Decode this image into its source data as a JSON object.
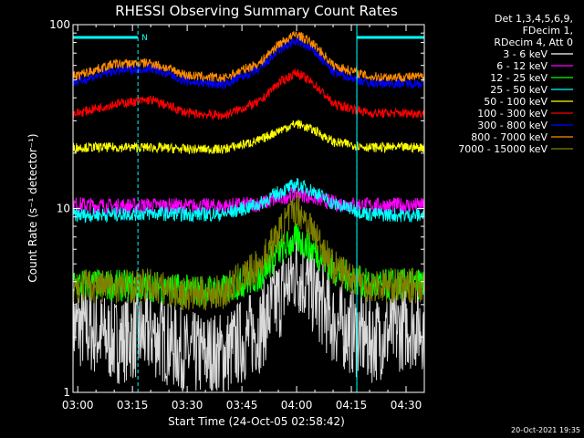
{
  "chart_data": {
    "type": "line",
    "title": "RHESSI Observing Summary Count Rates",
    "xlabel": "Start Time (24-Oct-05 02:58:42)",
    "ylabel": "Count Rate (s⁻¹ detector⁻¹)",
    "y_scale": "log",
    "ylim": [
      1,
      100
    ],
    "xlim_minutes": [
      -1.3,
      95.0
    ],
    "x_ticks": [
      {
        "label": "03:00",
        "minute": 0
      },
      {
        "label": "03:15",
        "minute": 15
      },
      {
        "label": "03:30",
        "minute": 30
      },
      {
        "label": "03:45",
        "minute": 45
      },
      {
        "label": "04:00",
        "minute": 60
      },
      {
        "label": "04:15",
        "minute": 75
      },
      {
        "label": "04:30",
        "minute": 90
      }
    ],
    "y_ticks": [
      {
        "label": "1",
        "value": 1
      },
      {
        "label": "10",
        "value": 10
      },
      {
        "label": "100",
        "value": 100
      }
    ],
    "legend_header": [
      "Det 1,3,4,5,6,9,",
      "FDecim 1,",
      "RDecim 4, Att 0"
    ],
    "legend_position": "right",
    "flags": {
      "label": "N",
      "color": "#00ffff",
      "night_segments_minutes": [
        [
          -1.3,
          16.5
        ],
        [
          76.5,
          95.0
        ]
      ],
      "dashed_markers_minutes": [
        16.5,
        76.5
      ],
      "solid_markers_minutes": [
        -1.3,
        76.5,
        95.0
      ]
    },
    "series": [
      {
        "name": "3 - 6 keV",
        "color": "#000000",
        "x_minutes": [
          0,
          10,
          20,
          30,
          40,
          50,
          55,
          60,
          65,
          70,
          80,
          90
        ],
        "values": [
          2.3,
          1.9,
          2.1,
          1.6,
          1.6,
          2.2,
          3.2,
          4.6,
          3.4,
          2.4,
          1.9,
          2.3
        ]
      },
      {
        "name": "6 - 12 keV",
        "color": "#ff00ff",
        "x_minutes": [
          0,
          10,
          20,
          30,
          40,
          50,
          55,
          60,
          65,
          70,
          80,
          90
        ],
        "values": [
          10.5,
          10.3,
          10.4,
          10.3,
          10.3,
          10.6,
          11.3,
          12.2,
          11.4,
          10.7,
          10.4,
          10.4
        ]
      },
      {
        "name": "12 - 25 keV",
        "color": "#00ff00",
        "x_minutes": [
          0,
          10,
          20,
          30,
          40,
          50,
          55,
          60,
          65,
          70,
          80,
          90
        ],
        "values": [
          3.9,
          3.8,
          3.8,
          3.6,
          3.6,
          4.3,
          5.8,
          6.8,
          5.9,
          4.6,
          3.8,
          3.9
        ]
      },
      {
        "name": "25 - 50 keV",
        "color": "#00ffff",
        "x_minutes": [
          0,
          10,
          20,
          30,
          40,
          50,
          55,
          60,
          65,
          70,
          80,
          90
        ],
        "values": [
          9.2,
          9.3,
          9.4,
          9.3,
          9.3,
          10.6,
          12.2,
          13.5,
          12.3,
          10.6,
          9.3,
          9.2
        ]
      },
      {
        "name": "50 - 100 keV",
        "color": "#ffff00",
        "x_minutes": [
          0,
          10,
          20,
          30,
          40,
          50,
          55,
          60,
          65,
          70,
          80,
          90
        ],
        "values": [
          21.5,
          21.5,
          21.5,
          21.0,
          21.0,
          23.5,
          26.5,
          29.0,
          26.5,
          23.0,
          21.5,
          21.5
        ]
      },
      {
        "name": "100 - 300 keV",
        "color": "#ff0000",
        "x_minutes": [
          0,
          10,
          20,
          30,
          40,
          50,
          55,
          60,
          65,
          70,
          80,
          90
        ],
        "values": [
          33,
          37,
          39,
          33,
          32,
          38,
          48,
          55,
          47,
          37,
          33,
          33
        ]
      },
      {
        "name": "300 - 800 keV",
        "color": "#0000ff",
        "x_minutes": [
          0,
          10,
          20,
          30,
          40,
          50,
          55,
          60,
          65,
          70,
          80,
          90
        ],
        "values": [
          49,
          56,
          58,
          49,
          47,
          57,
          72,
          82,
          71,
          55,
          48,
          48
        ]
      },
      {
        "name": "800 - 7000 keV",
        "color": "#ff8c00",
        "x_minutes": [
          0,
          10,
          20,
          30,
          40,
          50,
          55,
          60,
          65,
          70,
          80,
          90
        ],
        "values": [
          53,
          61,
          62,
          53,
          51,
          62,
          78,
          89,
          77,
          60,
          52,
          52
        ]
      },
      {
        "name": "7000 - 15000 keV",
        "color": "#808000",
        "x_minutes": [
          0,
          10,
          20,
          30,
          40,
          50,
          55,
          60,
          65,
          70,
          80,
          90
        ],
        "values": [
          3.8,
          3.8,
          3.8,
          3.4,
          3.5,
          4.9,
          7.2,
          10.2,
          7.2,
          4.8,
          3.8,
          3.8
        ]
      }
    ]
  },
  "timestamp": "20-Oct-2021 19:35"
}
